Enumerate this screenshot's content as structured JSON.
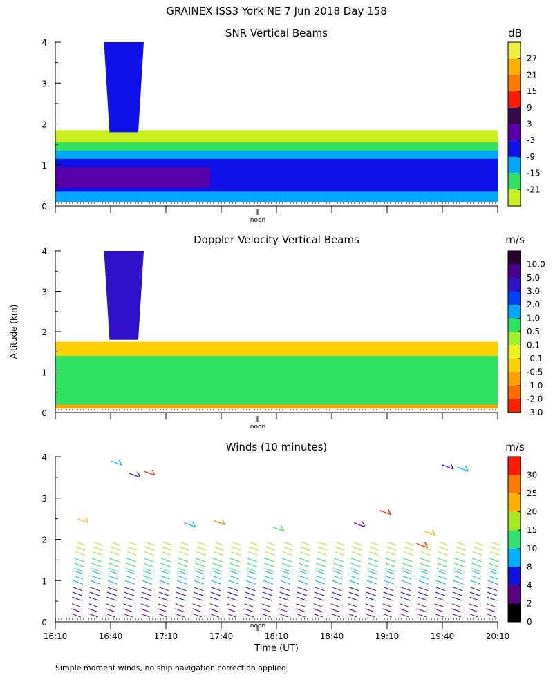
{
  "header": {
    "title": "GRAINEX ISS3 York NE   7 Jun 2018 Day 158"
  },
  "footer": {
    "note": "Simple moment winds, no ship navigation correction applied"
  },
  "chart_data": [
    {
      "type": "heatmap",
      "title": "SNR Vertical Beams",
      "xlabel": "",
      "ylabel": "",
      "xlim": [
        "16:10",
        "20:10"
      ],
      "ylim": [
        0,
        4
      ],
      "yticks": [
        "0",
        "1",
        "2",
        "3",
        "4"
      ],
      "noon_label": "noon",
      "colorbar": {
        "unit": "dB",
        "labels": [
          "27",
          "21",
          "15",
          "9",
          "3",
          "-3",
          "-9",
          "-15",
          "-21"
        ],
        "colors": [
          "#f0f040",
          "#ffb000",
          "#ff7a00",
          "#ff1a00",
          "#3a0a48",
          "#5a00a8",
          "#1010e8",
          "#00a8ff",
          "#30e060",
          "#c8f020"
        ]
      },
      "layers": [
        {
          "label": "-21",
          "color": "#c8f020",
          "band": {
            "start": 0.0,
            "end": 1.0,
            "bottom": 0.1,
            "top": 1.85
          }
        },
        {
          "label": "-15",
          "color": "#30e060",
          "band": {
            "start": 0.0,
            "end": 1.0,
            "bottom": 0.1,
            "top": 1.55
          }
        },
        {
          "label": "-9",
          "color": "#00a8ff",
          "band": {
            "start": 0.0,
            "end": 1.0,
            "bottom": 0.1,
            "top": 1.35
          }
        },
        {
          "label": "-3",
          "color": "#1010e8",
          "band": {
            "start": 0.0,
            "end": 1.0,
            "bottom": 0.35,
            "top": 1.15
          }
        },
        {
          "label": "3",
          "color": "#5a00a8",
          "band": {
            "start": 0.0,
            "end": 0.35,
            "bottom": 0.45,
            "top": 0.95
          }
        }
      ],
      "plume": {
        "start": 0.11,
        "end": 0.2,
        "top": 4.0,
        "bottom": 1.8
      }
    },
    {
      "type": "heatmap",
      "title": "Doppler Velocity Vertical Beams",
      "xlabel": "",
      "ylabel": "Altitude (km)",
      "xlim": [
        "16:10",
        "20:10"
      ],
      "ylim": [
        0,
        4
      ],
      "yticks": [
        "0",
        "1",
        "2",
        "3",
        "4"
      ],
      "noon_label": "noon",
      "colorbar": {
        "unit": "m/s",
        "labels": [
          "10.0",
          "5.0",
          "3.0",
          "2.0",
          "1.0",
          "0.5",
          "0.1",
          "-0.1",
          "-0.5",
          "-1.0",
          "-2.0",
          "-3.0"
        ],
        "colors": [
          "#2a0030",
          "#4a0090",
          "#3010c8",
          "#0040ff",
          "#00a8ff",
          "#30e060",
          "#a0f030",
          "#f0f020",
          "#ffd000",
          "#ffa000",
          "#ff6a00",
          "#ff2000"
        ]
      },
      "layers": [
        {
          "label": "-0.5",
          "color": "#ffd000",
          "band": {
            "start": 0.0,
            "end": 1.0,
            "bottom": 0.1,
            "top": 1.75
          }
        },
        {
          "label": "-1.0",
          "color": "#ffa000",
          "band": {
            "start": 0.0,
            "end": 1.0,
            "bottom": 0.1,
            "top": 1.15
          }
        },
        {
          "label": "0.5",
          "color": "#30e060",
          "band": {
            "start": 0.0,
            "end": 1.0,
            "bottom": 0.2,
            "top": 1.4
          }
        }
      ],
      "plume": {
        "start": 0.11,
        "end": 0.2,
        "top": 4.0,
        "bottom": 1.8
      }
    },
    {
      "type": "scatter",
      "title": "Winds (10 minutes)",
      "xlabel": "Time (UT)",
      "ylabel": "",
      "xlim": [
        "16:10",
        "20:10"
      ],
      "ylim": [
        0,
        4
      ],
      "xticks": [
        "16:10",
        "16:40",
        "17:10",
        "17:40",
        "18:10",
        "18:40",
        "19:10",
        "19:40",
        "20:10"
      ],
      "yticks": [
        "0",
        "1",
        "2",
        "3",
        "4"
      ],
      "noon_label": "noon",
      "colorbar": {
        "unit": "m/s",
        "labels": [
          "30",
          "25",
          "20",
          "15",
          "10",
          "8",
          "4",
          "2",
          "0"
        ],
        "colors": [
          "#ff1a00",
          "#ff7a00",
          "#ffb000",
          "#a8e820",
          "#30e070",
          "#00b0ff",
          "#1010e0",
          "#5a0080",
          "#000000"
        ]
      },
      "profiles_count": 25,
      "speed_profile": [
        {
          "altitude": 0.2,
          "color": "#5a0080"
        },
        {
          "altitude": 0.6,
          "color": "#1010e0"
        },
        {
          "altitude": 1.0,
          "color": "#00b0ff"
        },
        {
          "altitude": 1.3,
          "color": "#30e070"
        },
        {
          "altitude": 1.7,
          "color": "#a8e820"
        }
      ],
      "upper_barbs": [
        {
          "time": "16:40",
          "altitude": 3.9,
          "color": "#00b0ff"
        },
        {
          "time": "16:50",
          "altitude": 3.6,
          "color": "#1010e0"
        },
        {
          "time": "16:58",
          "altitude": 3.65,
          "color": "#ff1a00"
        },
        {
          "time": "16:22",
          "altitude": 2.5,
          "color": "#ffb000"
        },
        {
          "time": "17:20",
          "altitude": 2.4,
          "color": "#00b0ff"
        },
        {
          "time": "17:36",
          "altitude": 2.45,
          "color": "#ff7a00"
        },
        {
          "time": "18:08",
          "altitude": 2.3,
          "color": "#30e070"
        },
        {
          "time": "18:52",
          "altitude": 2.4,
          "color": "#5a0080"
        },
        {
          "time": "19:06",
          "altitude": 2.7,
          "color": "#ff1a00"
        },
        {
          "time": "19:26",
          "altitude": 1.9,
          "color": "#ff1a00"
        },
        {
          "time": "19:30",
          "altitude": 2.2,
          "color": "#ffb000"
        },
        {
          "time": "19:40",
          "altitude": 3.8,
          "color": "#1010e0"
        },
        {
          "time": "19:48",
          "altitude": 3.75,
          "color": "#00b0ff"
        }
      ]
    }
  ]
}
